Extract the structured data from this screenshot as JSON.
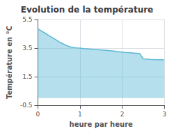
{
  "chart_data": {
    "type": "area",
    "title": "Evolution de la température",
    "xlabel": "heure par heure",
    "ylabel": "Température en °C",
    "x": [
      0,
      0.083,
      0.167,
      0.25,
      0.333,
      0.417,
      0.5,
      0.583,
      0.667,
      0.75,
      0.833,
      0.917,
      1.0,
      1.083,
      1.167,
      1.25,
      1.333,
      1.417,
      1.5,
      1.583,
      1.667,
      1.75,
      1.833,
      1.917,
      2.0,
      2.083,
      2.167,
      2.25,
      2.333,
      2.417,
      2.5,
      2.583,
      2.667,
      2.75,
      2.833,
      2.917,
      3.0
    ],
    "values": [
      4.85,
      4.7,
      4.55,
      4.4,
      4.25,
      4.1,
      3.95,
      3.82,
      3.7,
      3.6,
      3.55,
      3.52,
      3.5,
      3.47,
      3.45,
      3.43,
      3.41,
      3.39,
      3.37,
      3.35,
      3.33,
      3.31,
      3.28,
      3.25,
      3.22,
      3.2,
      3.18,
      3.16,
      3.14,
      3.12,
      2.75,
      2.73,
      2.71,
      2.7,
      2.69,
      2.68,
      2.67
    ],
    "color": "#5bb8d4",
    "xlim": [
      0,
      3
    ],
    "xticks": [
      0,
      1,
      2,
      3
    ],
    "ylim": [
      -0.5,
      5.5
    ],
    "yticks": [
      -0.5,
      1.5,
      3.5,
      5.5
    ],
    "grid": true
  }
}
